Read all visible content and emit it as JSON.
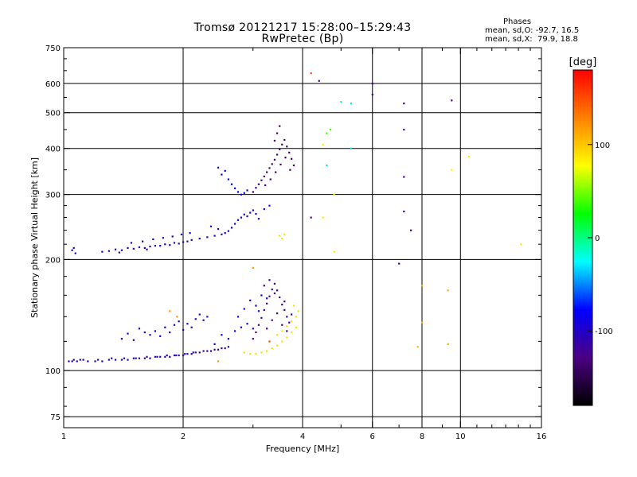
{
  "chart_data": {
    "type": "scatter",
    "title": "Tromsø 20121217 15:28:00–15:29:43",
    "subtitle": "RwPretec (Bp)",
    "xlabel": "Frequency [MHz]",
    "ylabel": "Stationary phase Virtual Height [km]",
    "x_scale": "log",
    "y_scale": "log",
    "xlim": [
      1,
      16
    ],
    "ylim": [
      70,
      750
    ],
    "x_ticks": [
      1,
      2,
      4,
      6,
      8,
      10,
      16
    ],
    "y_ticks": [
      75,
      100,
      200,
      300,
      400,
      500,
      600,
      750
    ],
    "grid": true,
    "phase_stats": {
      "heading": "Phases",
      "o_line": "mean, sd,O: -92.7, 16.5",
      "x_line": "mean, sd,X:  79.9, 18.8"
    },
    "colorbar": {
      "label": "[deg]",
      "ticks": [
        100,
        0,
        -100
      ],
      "range": [
        -180,
        180
      ],
      "colors": [
        "#000000",
        "#4b0082",
        "#0000ff",
        "#00ffff",
        "#00ff00",
        "#ffff00",
        "#ff8000",
        "#ff0000"
      ]
    },
    "series": [
      {
        "phase_deg": -110,
        "points": [
          [
            1.03,
            106
          ],
          [
            1.05,
            106
          ],
          [
            1.08,
            106
          ],
          [
            1.1,
            107
          ],
          [
            1.15,
            106
          ],
          [
            1.2,
            106
          ],
          [
            1.25,
            106
          ],
          [
            1.3,
            107
          ],
          [
            1.35,
            107
          ],
          [
            1.4,
            107
          ],
          [
            1.45,
            107
          ],
          [
            1.5,
            108
          ],
          [
            1.55,
            108
          ],
          [
            1.6,
            108
          ],
          [
            1.65,
            108
          ],
          [
            1.7,
            109
          ],
          [
            1.75,
            109
          ],
          [
            1.8,
            109
          ],
          [
            1.85,
            109
          ],
          [
            1.9,
            110
          ],
          [
            1.95,
            110
          ],
          [
            2.0,
            110
          ],
          [
            2.05,
            111
          ],
          [
            2.1,
            111
          ],
          [
            2.15,
            112
          ],
          [
            2.2,
            112
          ],
          [
            2.3,
            113
          ],
          [
            2.4,
            114
          ],
          [
            2.5,
            115
          ],
          [
            2.6,
            116
          ],
          [
            1.06,
            107
          ],
          [
            1.12,
            107
          ],
          [
            1.22,
            107
          ],
          [
            1.32,
            108
          ],
          [
            1.42,
            108
          ],
          [
            1.52,
            108
          ],
          [
            1.62,
            109
          ],
          [
            1.72,
            109
          ],
          [
            1.82,
            110
          ],
          [
            1.92,
            110
          ],
          [
            2.02,
            111
          ],
          [
            2.12,
            112
          ],
          [
            2.25,
            113
          ],
          [
            2.35,
            113
          ],
          [
            2.45,
            114
          ],
          [
            2.55,
            115
          ]
        ]
      },
      {
        "phase_deg": -105,
        "points": [
          [
            1.05,
            212
          ],
          [
            1.07,
            208
          ],
          [
            1.06,
            215
          ],
          [
            1.25,
            210
          ],
          [
            1.3,
            211
          ],
          [
            1.35,
            213
          ],
          [
            1.4,
            212
          ],
          [
            1.45,
            215
          ],
          [
            1.5,
            214
          ],
          [
            1.55,
            216
          ],
          [
            1.6,
            215
          ],
          [
            1.65,
            217
          ],
          [
            1.7,
            218
          ],
          [
            1.75,
            218
          ],
          [
            1.8,
            220
          ],
          [
            1.85,
            219
          ],
          [
            1.9,
            222
          ],
          [
            1.95,
            221
          ],
          [
            2.0,
            223
          ],
          [
            2.05,
            224
          ],
          [
            2.1,
            226
          ],
          [
            2.2,
            228
          ],
          [
            2.3,
            230
          ],
          [
            2.4,
            232
          ],
          [
            2.5,
            234
          ],
          [
            1.48,
            222
          ],
          [
            1.58,
            224
          ],
          [
            1.68,
            227
          ],
          [
            1.78,
            229
          ],
          [
            1.88,
            231
          ],
          [
            1.98,
            234
          ],
          [
            2.08,
            236
          ],
          [
            1.38,
            209
          ],
          [
            1.62,
            213
          ]
        ]
      },
      {
        "phase_deg": -95,
        "points": [
          [
            2.55,
            236
          ],
          [
            2.6,
            239
          ],
          [
            2.65,
            244
          ],
          [
            2.7,
            250
          ],
          [
            2.75,
            256
          ],
          [
            2.8,
            260
          ],
          [
            2.85,
            265
          ],
          [
            2.9,
            262
          ],
          [
            2.95,
            268
          ],
          [
            3.0,
            272
          ],
          [
            3.05,
            266
          ],
          [
            3.1,
            258
          ],
          [
            3.2,
            274
          ],
          [
            3.3,
            280
          ],
          [
            2.35,
            246
          ],
          [
            2.45,
            242
          ]
        ]
      },
      {
        "phase_deg": -100,
        "points": [
          [
            1.55,
            130
          ],
          [
            1.6,
            127
          ],
          [
            1.65,
            125
          ],
          [
            1.7,
            128
          ],
          [
            1.75,
            124
          ],
          [
            1.8,
            131
          ],
          [
            1.85,
            127
          ],
          [
            1.9,
            133
          ],
          [
            1.95,
            136
          ],
          [
            2.0,
            129
          ],
          [
            2.05,
            134
          ],
          [
            2.1,
            131
          ],
          [
            2.15,
            138
          ],
          [
            2.2,
            142
          ],
          [
            2.25,
            137
          ],
          [
            2.3,
            140
          ],
          [
            1.4,
            122
          ],
          [
            1.45,
            126
          ],
          [
            1.5,
            121
          ]
        ]
      },
      {
        "phase_deg": -90,
        "points": [
          [
            2.4,
            118
          ],
          [
            2.5,
            125
          ],
          [
            2.6,
            122
          ],
          [
            2.7,
            128
          ],
          [
            2.8,
            131
          ],
          [
            2.9,
            134
          ],
          [
            3.0,
            130
          ],
          [
            2.75,
            140
          ],
          [
            2.85,
            147
          ],
          [
            2.95,
            155
          ],
          [
            3.05,
            150
          ],
          [
            3.15,
            160
          ],
          [
            3.1,
            145
          ],
          [
            3.25,
            157
          ]
        ]
      },
      {
        "phase_deg": -125,
        "points": [
          [
            3.0,
            122
          ],
          [
            3.05,
            127
          ],
          [
            3.1,
            133
          ],
          [
            3.15,
            139
          ],
          [
            3.2,
            146
          ],
          [
            3.25,
            152
          ],
          [
            3.3,
            159
          ],
          [
            3.35,
            166
          ],
          [
            3.4,
            172
          ],
          [
            3.45,
            165
          ],
          [
            3.5,
            158
          ],
          [
            3.55,
            151
          ],
          [
            3.6,
            146
          ],
          [
            3.65,
            140
          ],
          [
            3.7,
            135
          ],
          [
            3.75,
            142
          ],
          [
            3.25,
            130
          ],
          [
            3.35,
            137
          ],
          [
            3.45,
            143
          ],
          [
            3.55,
            133
          ],
          [
            3.65,
            128
          ],
          [
            3.2,
            170
          ],
          [
            3.3,
            176
          ],
          [
            3.4,
            162
          ],
          [
            3.6,
            154
          ]
        ]
      },
      {
        "phase_deg": -135,
        "points": [
          [
            3.0,
            305
          ],
          [
            3.05,
            313
          ],
          [
            3.1,
            320
          ],
          [
            3.15,
            328
          ],
          [
            3.2,
            336
          ],
          [
            3.25,
            345
          ],
          [
            3.3,
            354
          ],
          [
            3.35,
            363
          ],
          [
            3.4,
            373
          ],
          [
            3.45,
            385
          ],
          [
            3.5,
            398
          ],
          [
            3.55,
            410
          ],
          [
            3.6,
            422
          ],
          [
            3.65,
            405
          ],
          [
            3.7,
            390
          ],
          [
            3.75,
            375
          ],
          [
            3.8,
            360
          ],
          [
            3.22,
            318
          ],
          [
            3.32,
            330
          ],
          [
            3.42,
            345
          ],
          [
            3.52,
            362
          ],
          [
            3.62,
            378
          ],
          [
            3.72,
            350
          ],
          [
            3.45,
            440
          ],
          [
            3.5,
            460
          ],
          [
            3.4,
            420
          ]
        ]
      },
      {
        "phase_deg": -80,
        "points": [
          [
            2.45,
            355
          ],
          [
            2.5,
            340
          ],
          [
            2.55,
            348
          ],
          [
            2.6,
            330
          ],
          [
            2.65,
            320
          ],
          [
            2.7,
            312
          ],
          [
            2.75,
            305
          ],
          [
            2.8,
            300
          ],
          [
            2.85,
            303
          ],
          [
            2.9,
            308
          ]
        ]
      },
      {
        "phase_deg": 90,
        "points": [
          [
            2.85,
            112
          ],
          [
            2.95,
            111
          ],
          [
            3.05,
            111
          ],
          [
            3.15,
            112
          ],
          [
            3.25,
            113
          ],
          [
            3.35,
            115
          ],
          [
            3.45,
            117
          ],
          [
            3.55,
            120
          ],
          [
            3.65,
            123
          ],
          [
            3.75,
            127
          ],
          [
            3.85,
            131
          ],
          [
            3.45,
            125
          ],
          [
            3.55,
            128
          ],
          [
            3.65,
            132
          ],
          [
            3.75,
            136
          ],
          [
            3.85,
            140
          ],
          [
            3.9,
            145
          ],
          [
            3.8,
            150
          ],
          [
            3.5,
            232
          ],
          [
            3.55,
            228
          ],
          [
            3.6,
            234
          ]
        ]
      },
      {
        "phase_deg": 40,
        "points": [
          [
            4.6,
            440
          ],
          [
            4.7,
            450
          ]
        ]
      },
      {
        "phase_deg": 150,
        "points": [
          [
            4.2,
            640
          ],
          [
            3.3,
            120
          ]
        ]
      },
      {
        "phase_deg": 120,
        "points": [
          [
            2.45,
            106
          ],
          [
            1.93,
            140
          ],
          [
            3.0,
            190
          ],
          [
            1.85,
            145
          ]
        ]
      },
      {
        "phase_deg": 85,
        "points": [
          [
            4.5,
            410
          ],
          [
            9.5,
            350
          ],
          [
            4.8,
            300
          ],
          [
            4.5,
            260
          ],
          [
            4.8,
            210
          ],
          [
            14.2,
            220
          ],
          [
            10.5,
            380
          ]
        ]
      },
      {
        "phase_deg": -120,
        "points": [
          [
            6.0,
            600
          ],
          [
            6.0,
            560
          ],
          [
            7.2,
            530
          ],
          [
            9.5,
            540
          ],
          [
            7.2,
            450
          ],
          [
            7.2,
            335
          ],
          [
            7.2,
            270
          ],
          [
            7.5,
            240
          ],
          [
            7.0,
            195
          ],
          [
            4.2,
            260
          ],
          [
            4.4,
            610
          ]
        ]
      },
      {
        "phase_deg": -30,
        "points": [
          [
            5.0,
            535
          ],
          [
            5.3,
            530
          ],
          [
            4.6,
            360
          ],
          [
            5.3,
            400
          ]
        ]
      },
      {
        "phase_deg": 110,
        "points": [
          [
            8.0,
            170
          ],
          [
            8.0,
            135
          ],
          [
            9.3,
            165
          ],
          [
            7.8,
            116
          ],
          [
            9.3,
            118
          ]
        ]
      }
    ]
  }
}
